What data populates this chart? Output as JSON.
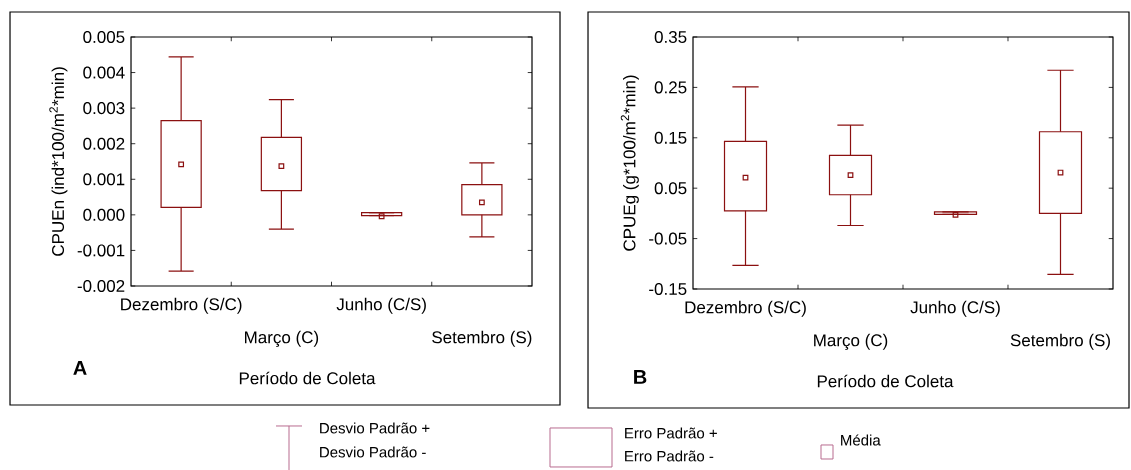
{
  "chart_data": [
    {
      "type": "box",
      "ylabel": "CPUEn (ind*100/m$^{2}$*min)",
      "xlabel": "Período de Coleta",
      "categories": [
        "Dezembro (S/C)",
        "Março (C)",
        "Junho (C/S)",
        "Setembro (S)"
      ],
      "color": "#8b1010",
      "boxes": [
        {
          "low": -0.00158,
          "q1": 0.00021,
          "q3": 0.00265,
          "high": 0.00444,
          "mean": 0.00142
        },
        {
          "low": -0.0004,
          "q1": 0.00068,
          "q3": 0.00218,
          "high": 0.00324,
          "mean": 0.00137
        },
        {
          "low": -2e-05,
          "q1": -2e-05,
          "q3": 6e-05,
          "high": 6e-05,
          "mean": -4e-05
        },
        {
          "low": -0.00062,
          "q1": 0.0,
          "q3": 0.00085,
          "high": 0.00146,
          "mean": 0.00035
        }
      ],
      "ylim": [
        -0.002,
        0.005
      ],
      "yticks": [
        -0.002,
        -0.001,
        {
          "value": 0,
          "label": "0.000"
        },
        0.001,
        0.002,
        0.003,
        0.004,
        0.005
      ],
      "annotations": [
        "A",
        "Desvio Padrão +",
        "Desvio Padrão -",
        "Erro Padrão +",
        "Erro Padrão -",
        "Média"
      ]
    },
    {
      "type": "box",
      "ylabel": "CPUEg (g*100/m$^{2}$*min)",
      "xlabel": "Período de Coleta",
      "categories": [
        "Dezembro (S/C)",
        "Março (C)",
        "Junho (C/S)",
        "Setembro (S)"
      ],
      "color": "#8b1010",
      "boxes": [
        {
          "low": -0.103,
          "q1": 0.005,
          "q3": 0.143,
          "high": 0.251,
          "mean": 0.071
        },
        {
          "low": -0.024,
          "q1": 0.037,
          "q3": 0.115,
          "high": 0.175,
          "mean": 0.076
        },
        {
          "low": -0.002,
          "q1": -0.002,
          "q3": 0.003,
          "high": 0.003,
          "mean": -0.003
        },
        {
          "low": -0.121,
          "q1": 0.0,
          "q3": 0.162,
          "high": 0.284,
          "mean": 0.081
        }
      ],
      "ylim": [
        -0.15,
        0.35
      ],
      "yticks": [
        -0.15,
        -0.05,
        0.05,
        0.15,
        0.25,
        0.35
      ],
      "annotations": [
        "B"
      ]
    }
  ]
}
